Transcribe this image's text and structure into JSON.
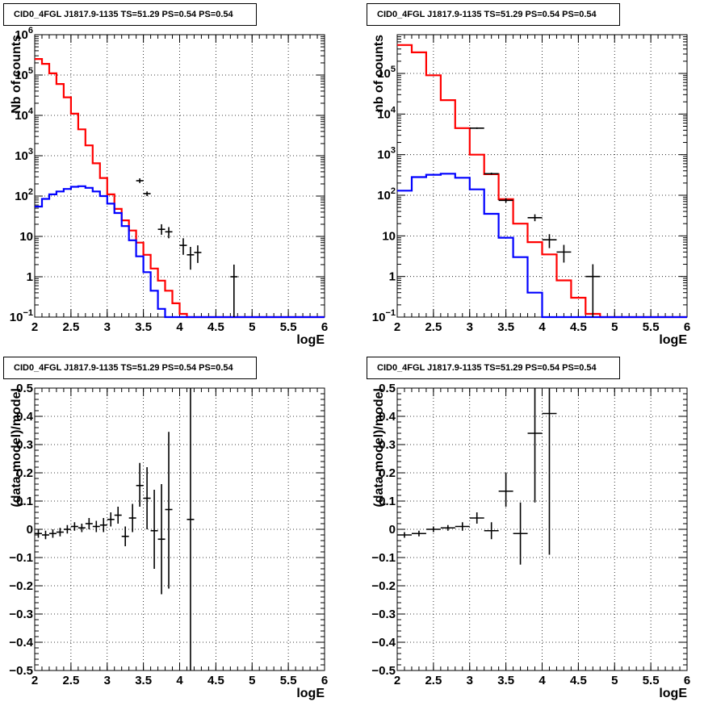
{
  "chart_data": [
    {
      "type": "histogram",
      "title": "CID0_4FGL J1817.9-1135 TS=51.29 PS=0.54 PS=0.54",
      "xlabel": "logE",
      "ylabel": "Nb of counts",
      "xlim": [
        2,
        6
      ],
      "ylim": [
        0.1,
        1000000
      ],
      "yscale": "log",
      "grid": true,
      "x_ticks": [
        "2",
        "2.5",
        "3",
        "3.5",
        "4",
        "4.5",
        "5",
        "5.5",
        "6"
      ],
      "y_ticks": [
        "10^-1",
        "1",
        "10",
        "10^2",
        "10^3",
        "10^4",
        "10^5",
        "10^6"
      ],
      "bin_edges": [
        2.0,
        2.1,
        2.2,
        2.3,
        2.4,
        2.5,
        2.6,
        2.7,
        2.8,
        2.9,
        3.0,
        3.1,
        3.2,
        3.3,
        3.4,
        3.5,
        3.6,
        3.7,
        3.8,
        3.9,
        4.0,
        4.1,
        4.2,
        4.3,
        4.4,
        4.5,
        4.6,
        4.7,
        4.8,
        4.9,
        5.0,
        5.1,
        5.2,
        5.3,
        5.4,
        5.5,
        5.6,
        5.7,
        5.8,
        5.9,
        6.0
      ],
      "series": [
        {
          "color": "#ff0000",
          "values": [
            250000,
            190000,
            110000,
            60000,
            28000,
            11000,
            4500,
            1800,
            650,
            280,
            110,
            48,
            25,
            14,
            7,
            3.5,
            1.6,
            0.8,
            0.45,
            0.22,
            0.12,
            0.1,
            0.1,
            0.1,
            0.1,
            0.1,
            0.1,
            0.1,
            0.1,
            0.1,
            0.1,
            0.1,
            0.1,
            0.1,
            0.1,
            0.1,
            0.1,
            0.1,
            0.1,
            0.1
          ]
        },
        {
          "color": "#0000ff",
          "values": [
            55,
            85,
            110,
            130,
            150,
            170,
            175,
            160,
            130,
            100,
            65,
            38,
            18,
            8,
            3.2,
            1.3,
            0.45,
            0.16,
            0.1,
            0.1,
            0.1,
            0.1,
            0.1,
            0.1,
            0.1,
            0.1,
            0.1,
            0.1,
            0.1,
            0.1,
            0.1,
            0.1,
            0.1,
            0.1,
            0.1,
            0.1,
            0.1,
            0.1,
            0.1,
            0.1
          ]
        }
      ],
      "points": [
        {
          "x": 3.45,
          "y": 240,
          "xerr": 0.05,
          "ylo": 210,
          "yhi": 275
        },
        {
          "x": 3.55,
          "y": 115,
          "xerr": 0.05,
          "ylo": 100,
          "yhi": 130
        },
        {
          "x": 3.75,
          "y": 15,
          "xerr": 0.05,
          "ylo": 11,
          "yhi": 20
        },
        {
          "x": 3.85,
          "y": 13,
          "xerr": 0.05,
          "ylo": 9,
          "yhi": 17
        },
        {
          "x": 4.05,
          "y": 6,
          "xerr": 0.05,
          "ylo": 3.5,
          "yhi": 9
        },
        {
          "x": 4.15,
          "y": 3.5,
          "xerr": 0.05,
          "ylo": 1.5,
          "yhi": 5.5
        },
        {
          "x": 4.25,
          "y": 4,
          "xerr": 0.05,
          "ylo": 2.2,
          "yhi": 6
        },
        {
          "x": 4.75,
          "y": 1,
          "xerr": 0.05,
          "ylo": 0.1,
          "yhi": 2
        }
      ]
    },
    {
      "type": "histogram",
      "title": "CID0_4FGL J1817.9-1135 TS=51.29 PS=0.54 PS=0.54",
      "xlabel": "logE",
      "ylabel": "nb of counts",
      "xlim": [
        2,
        6
      ],
      "ylim": [
        0.1,
        900000
      ],
      "yscale": "log",
      "grid": true,
      "x_ticks": [
        "2",
        "2.5",
        "3",
        "3.5",
        "4",
        "4.5",
        "5",
        "5.5",
        "6"
      ],
      "y_ticks": [
        "10^-1",
        "1",
        "10",
        "10^2",
        "10^3",
        "10^4",
        "10^5"
      ],
      "bin_edges": [
        2.0,
        2.2,
        2.4,
        2.6,
        2.8,
        3.0,
        3.2,
        3.4,
        3.6,
        3.8,
        4.0,
        4.2,
        4.4,
        4.6,
        4.8,
        5.0,
        5.2,
        5.4,
        5.6,
        5.8,
        6.0
      ],
      "series": [
        {
          "color": "#ff0000",
          "values": [
            500000,
            330000,
            90000,
            22000,
            4500,
            1000,
            330,
            80,
            20,
            7,
            3.5,
            0.8,
            0.3,
            0.12,
            0.1,
            0.1,
            0.1,
            0.1,
            0.1,
            0.1
          ]
        },
        {
          "color": "#0000ff",
          "values": [
            130,
            280,
            320,
            340,
            270,
            140,
            35,
            9,
            3,
            0.4,
            0.1,
            0.1,
            0.1,
            0.1,
            0.1,
            0.1,
            0.1,
            0.1,
            0.1,
            0.1
          ]
        }
      ],
      "points": [
        {
          "x": 3.1,
          "y": 4500,
          "xerr": 0.1,
          "ylo": 4300,
          "yhi": 4700
        },
        {
          "x": 3.3,
          "y": 340,
          "xerr": 0.1,
          "ylo": 320,
          "yhi": 360
        },
        {
          "x": 3.5,
          "y": 75,
          "xerr": 0.1,
          "ylo": 66,
          "yhi": 85
        },
        {
          "x": 3.9,
          "y": 28,
          "xerr": 0.1,
          "ylo": 23,
          "yhi": 34
        },
        {
          "x": 4.1,
          "y": 8,
          "xerr": 0.1,
          "ylo": 5,
          "yhi": 11
        },
        {
          "x": 4.3,
          "y": 4,
          "xerr": 0.1,
          "ylo": 2.2,
          "yhi": 6
        },
        {
          "x": 4.7,
          "y": 1,
          "xerr": 0.1,
          "ylo": 0.1,
          "yhi": 2
        }
      ]
    },
    {
      "type": "scatter",
      "title": "CID0_4FGL J1817.9-1135 TS=51.29 PS=0.54 PS=0.54",
      "xlabel": "logE",
      "ylabel": "(data-model)/model",
      "xlim": [
        2,
        6
      ],
      "ylim": [
        -0.5,
        0.5
      ],
      "grid": true,
      "x_ticks": [
        "2",
        "2.5",
        "3",
        "3.5",
        "4",
        "4.5",
        "5",
        "5.5",
        "6"
      ],
      "y_ticks": [
        "-0.5",
        "-0.4",
        "-0.3",
        "-0.2",
        "-0.1",
        "0",
        "0.1",
        "0.2",
        "0.3",
        "0.4",
        "0.5"
      ],
      "points": [
        {
          "x": 2.05,
          "y": -0.015,
          "xerr": 0.05,
          "ylo": -0.03,
          "yhi": 0.0
        },
        {
          "x": 2.15,
          "y": -0.02,
          "xerr": 0.05,
          "ylo": -0.035,
          "yhi": -0.005
        },
        {
          "x": 2.25,
          "y": -0.015,
          "xerr": 0.05,
          "ylo": -0.03,
          "yhi": 0.0
        },
        {
          "x": 2.35,
          "y": -0.01,
          "xerr": 0.05,
          "ylo": -0.025,
          "yhi": 0.005
        },
        {
          "x": 2.45,
          "y": 0.0,
          "xerr": 0.05,
          "ylo": -0.015,
          "yhi": 0.015
        },
        {
          "x": 2.55,
          "y": 0.01,
          "xerr": 0.05,
          "ylo": -0.005,
          "yhi": 0.025
        },
        {
          "x": 2.65,
          "y": 0.005,
          "xerr": 0.05,
          "ylo": -0.01,
          "yhi": 0.02
        },
        {
          "x": 2.75,
          "y": 0.02,
          "xerr": 0.05,
          "ylo": 0.0,
          "yhi": 0.04
        },
        {
          "x": 2.85,
          "y": 0.01,
          "xerr": 0.05,
          "ylo": -0.01,
          "yhi": 0.03
        },
        {
          "x": 2.95,
          "y": 0.015,
          "xerr": 0.05,
          "ylo": -0.01,
          "yhi": 0.04
        },
        {
          "x": 3.05,
          "y": 0.035,
          "xerr": 0.05,
          "ylo": 0.01,
          "yhi": 0.06
        },
        {
          "x": 3.15,
          "y": 0.05,
          "xerr": 0.05,
          "ylo": 0.02,
          "yhi": 0.08
        },
        {
          "x": 3.25,
          "y": -0.025,
          "xerr": 0.05,
          "ylo": -0.06,
          "yhi": 0.01
        },
        {
          "x": 3.35,
          "y": 0.04,
          "xerr": 0.05,
          "ylo": -0.01,
          "yhi": 0.09
        },
        {
          "x": 3.45,
          "y": 0.155,
          "xerr": 0.05,
          "ylo": 0.08,
          "yhi": 0.235
        },
        {
          "x": 3.55,
          "y": 0.11,
          "xerr": 0.05,
          "ylo": 0.0,
          "yhi": 0.22
        },
        {
          "x": 3.65,
          "y": -0.005,
          "xerr": 0.05,
          "ylo": -0.14,
          "yhi": 0.14
        },
        {
          "x": 3.75,
          "y": -0.035,
          "xerr": 0.05,
          "ylo": -0.23,
          "yhi": 0.16
        },
        {
          "x": 3.85,
          "y": 0.07,
          "xerr": 0.05,
          "ylo": -0.21,
          "yhi": 0.345
        },
        {
          "x": 4.15,
          "y": 0.035,
          "xerr": 0.05,
          "ylo": -0.5,
          "yhi": 0.5
        }
      ]
    },
    {
      "type": "scatter",
      "title": "CID0_4FGL J1817.9-1135 TS=51.29 PS=0.54 PS=0.54",
      "xlabel": "logE",
      "ylabel": "(data-model)/model",
      "xlim": [
        2,
        6
      ],
      "ylim": [
        -0.5,
        0.5
      ],
      "grid": true,
      "x_ticks": [
        "2",
        "2.5",
        "3",
        "3.5",
        "4",
        "4.5",
        "5",
        "5.5",
        "6"
      ],
      "y_ticks": [
        "-0.5",
        "-0.4",
        "-0.3",
        "-0.2",
        "-0.1",
        "0",
        "0.1",
        "0.2",
        "0.3",
        "0.4",
        "0.5"
      ],
      "points": [
        {
          "x": 2.1,
          "y": -0.02,
          "xerr": 0.1,
          "ylo": -0.03,
          "yhi": -0.01
        },
        {
          "x": 2.3,
          "y": -0.015,
          "xerr": 0.1,
          "ylo": -0.025,
          "yhi": -0.005
        },
        {
          "x": 2.5,
          "y": 0.0,
          "xerr": 0.1,
          "ylo": -0.01,
          "yhi": 0.01
        },
        {
          "x": 2.7,
          "y": 0.005,
          "xerr": 0.1,
          "ylo": -0.005,
          "yhi": 0.015
        },
        {
          "x": 2.9,
          "y": 0.01,
          "xerr": 0.1,
          "ylo": -0.005,
          "yhi": 0.025
        },
        {
          "x": 3.1,
          "y": 0.04,
          "xerr": 0.1,
          "ylo": 0.02,
          "yhi": 0.06
        },
        {
          "x": 3.3,
          "y": -0.005,
          "xerr": 0.1,
          "ylo": -0.035,
          "yhi": 0.025
        },
        {
          "x": 3.5,
          "y": 0.135,
          "xerr": 0.1,
          "ylo": 0.08,
          "yhi": 0.2
        },
        {
          "x": 3.7,
          "y": -0.015,
          "xerr": 0.1,
          "ylo": -0.125,
          "yhi": 0.095
        },
        {
          "x": 3.9,
          "y": 0.34,
          "xerr": 0.1,
          "ylo": 0.095,
          "yhi": 0.5
        },
        {
          "x": 4.1,
          "y": 0.41,
          "xerr": 0.1,
          "ylo": -0.09,
          "yhi": 0.5
        }
      ]
    }
  ]
}
